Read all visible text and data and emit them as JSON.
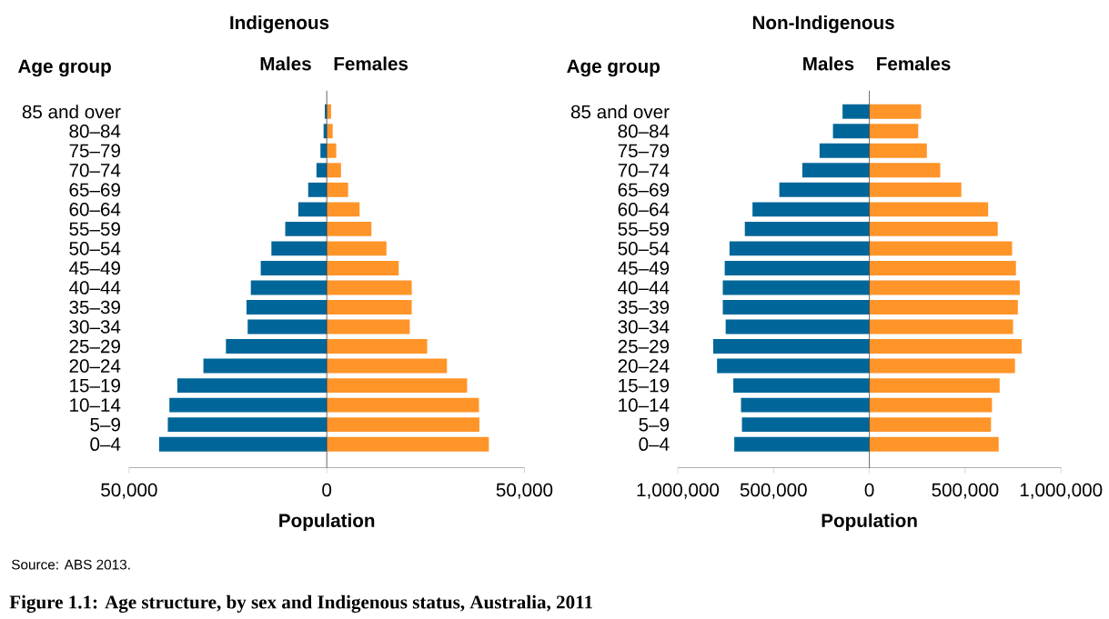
{
  "chart_data": [
    {
      "type": "bar",
      "orientation": "horizontal",
      "title": "Indigenous",
      "ylabel": "Age group",
      "xlabel": "Population",
      "categories": [
        "85 and over",
        "80–84",
        "75–79",
        "70–74",
        "65–69",
        "60–64",
        "55–59",
        "50–54",
        "45–49",
        "40–44",
        "35–39",
        "30–34",
        "25–29",
        "20–24",
        "15–19",
        "10–14",
        "5–9",
        "0–4"
      ],
      "stacked": true,
      "series": [
        {
          "name": "Males",
          "color": "#006699",
          "values": [
            -500,
            -800,
            -1600,
            -2600,
            -4700,
            -7200,
            -10500,
            -14000,
            -16700,
            -19200,
            -20300,
            -20000,
            -25500,
            -31200,
            -37800,
            -39800,
            -40200,
            -42400
          ]
        },
        {
          "name": "Females",
          "color": "#ff9429",
          "values": [
            1100,
            1500,
            2400,
            3600,
            5400,
            8300,
            11300,
            15100,
            18200,
            21500,
            21500,
            21000,
            25400,
            30400,
            35500,
            38500,
            38600,
            41000
          ]
        }
      ],
      "xlim": [
        -50000,
        50000
      ],
      "xticks": [
        {
          "value": -50000,
          "label": "50,000"
        },
        0,
        {
          "value": 50000,
          "label": "50,000"
        }
      ],
      "annotations": [
        "Source: ABS 2013.",
        "Figure 1.1: Age structure, by sex and Indigenous status, Australia, 2011"
      ]
    },
    {
      "type": "bar",
      "orientation": "horizontal",
      "title": "Non-Indigenous",
      "ylabel": "Age group",
      "xlabel": "Population",
      "categories": [
        "85 and over",
        "80–84",
        "75–79",
        "70–74",
        "65–69",
        "60–64",
        "55–59",
        "50–54",
        "45–49",
        "40–44",
        "35–39",
        "30–34",
        "25–29",
        "20–24",
        "15–19",
        "10–14",
        "5–9",
        "0–4"
      ],
      "stacked": true,
      "series": [
        {
          "name": "Males",
          "color": "#006699",
          "values": [
            -140000,
            -190000,
            -260000,
            -350000,
            -470000,
            -610000,
            -650000,
            -730000,
            -755000,
            -765000,
            -765000,
            -750000,
            -815000,
            -795000,
            -710000,
            -670000,
            -665000,
            -705000
          ]
        },
        {
          "name": "Females",
          "color": "#ff9429",
          "values": [
            270000,
            255000,
            300000,
            370000,
            480000,
            620000,
            670000,
            745000,
            765000,
            785000,
            775000,
            750000,
            795000,
            760000,
            680000,
            640000,
            635000,
            675000
          ]
        }
      ],
      "xlim": [
        -1000000,
        1000000
      ],
      "xticks": [
        {
          "value": -1000000,
          "label": "1,000,000"
        },
        {
          "value": -500000,
          "label": "500,000"
        },
        0,
        {
          "value": 500000,
          "label": "500,000"
        },
        {
          "value": 1000000,
          "label": "1,000,000"
        }
      ]
    }
  ]
}
